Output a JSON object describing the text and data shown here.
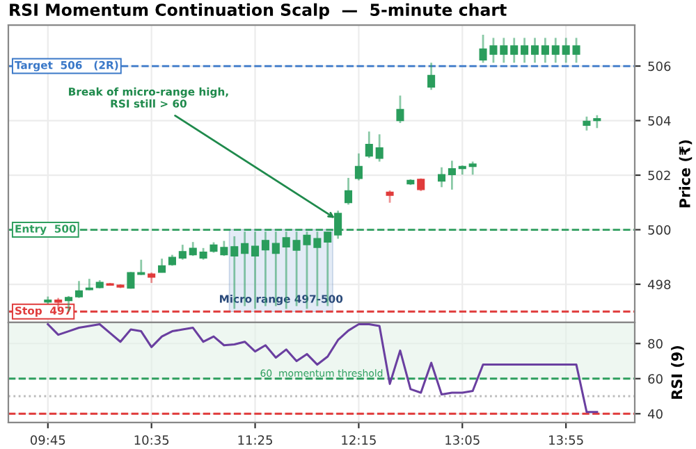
{
  "chart_data": [
    {
      "type": "candlestick",
      "title": "RSI Momentum Continuation Scalp  —  5-minute chart",
      "ylabel": "Price (₹)",
      "x": [
        9.75,
        9.8333,
        9.9167,
        10.0,
        10.0833,
        10.1667,
        10.25,
        10.3333,
        10.4167,
        10.5,
        10.5833,
        10.6667,
        10.75,
        10.8333,
        10.9167,
        11.0,
        11.0833,
        11.1667,
        11.25,
        11.3333,
        11.4167,
        11.5,
        11.5833,
        11.6667,
        11.75,
        11.8333,
        11.9167,
        12.0,
        12.0833,
        12.1667,
        12.25,
        12.3333,
        12.4167,
        12.5,
        12.5833,
        12.6667,
        12.75,
        12.8333,
        12.9167,
        13.0,
        13.0833,
        13.1667,
        13.25,
        13.3333,
        13.4167,
        13.5,
        13.5833,
        13.6667,
        13.75,
        13.8333,
        13.9167,
        14.0,
        14.0833,
        14.1667
      ],
      "ohlc": [
        [
          497.35,
          497.55,
          497.28,
          497.42
        ],
        [
          497.42,
          497.5,
          497.1,
          497.34
        ],
        [
          497.4,
          497.57,
          497.0,
          497.52
        ],
        [
          497.54,
          498.12,
          497.5,
          497.76
        ],
        [
          497.8,
          498.2,
          497.78,
          497.86
        ],
        [
          497.88,
          498.15,
          497.85,
          498.07
        ],
        [
          498.02,
          498.05,
          497.95,
          497.97
        ],
        [
          497.97,
          498.0,
          497.86,
          497.9
        ],
        [
          497.86,
          498.45,
          497.84,
          498.43
        ],
        [
          498.36,
          498.9,
          498.34,
          498.43
        ],
        [
          498.38,
          498.43,
          498.05,
          498.26
        ],
        [
          498.44,
          498.94,
          498.43,
          498.68
        ],
        [
          498.72,
          499.08,
          498.68,
          498.99
        ],
        [
          498.96,
          499.45,
          498.9,
          499.2
        ],
        [
          499.08,
          499.55,
          499.04,
          499.32
        ],
        [
          498.96,
          499.33,
          498.9,
          499.18
        ],
        [
          499.21,
          499.54,
          499.16,
          499.44
        ],
        [
          499.08,
          499.59,
          499.04,
          499.35
        ],
        [
          499.04,
          499.76,
          497.1,
          499.38
        ],
        [
          499.13,
          499.93,
          497.2,
          499.49
        ],
        [
          499.04,
          499.93,
          497.1,
          499.4
        ],
        [
          499.26,
          499.93,
          497.2,
          499.61
        ],
        [
          499.13,
          499.93,
          497.2,
          499.5
        ],
        [
          499.37,
          499.93,
          497.1,
          499.71
        ],
        [
          499.25,
          499.93,
          497.2,
          499.61
        ],
        [
          499.45,
          499.93,
          497.1,
          499.8
        ],
        [
          499.35,
          499.93,
          497.2,
          499.68
        ],
        [
          499.55,
          499.93,
          497.2,
          499.91
        ],
        [
          499.81,
          500.7,
          499.67,
          500.6
        ],
        [
          500.99,
          501.9,
          500.92,
          501.43
        ],
        [
          501.88,
          502.8,
          501.81,
          502.32
        ],
        [
          502.7,
          503.6,
          502.63,
          503.13
        ],
        [
          502.62,
          503.5,
          502.5,
          503.0
        ],
        [
          501.38,
          501.44,
          500.99,
          501.26
        ],
        [
          504.0,
          504.92,
          503.91,
          504.41
        ],
        [
          501.68,
          501.85,
          501.64,
          501.81
        ],
        [
          501.85,
          501.88,
          501.42,
          501.47
        ],
        [
          505.23,
          506.12,
          505.13,
          505.66
        ],
        [
          501.78,
          502.29,
          501.56,
          502.02
        ],
        [
          502.02,
          502.53,
          501.47,
          502.24
        ],
        [
          502.24,
          502.36,
          502.02,
          502.32
        ],
        [
          502.32,
          502.5,
          502.02,
          502.41
        ],
        [
          506.22,
          507.15,
          506.12,
          506.63
        ],
        [
          506.43,
          507.03,
          506.12,
          506.74
        ],
        [
          506.43,
          507.03,
          506.12,
          506.74
        ],
        [
          506.43,
          507.03,
          506.12,
          506.74
        ],
        [
          506.43,
          507.03,
          506.12,
          506.74
        ],
        [
          506.43,
          507.03,
          506.12,
          506.74
        ],
        [
          506.43,
          507.03,
          506.12,
          506.74
        ],
        [
          506.43,
          507.03,
          506.12,
          506.74
        ],
        [
          506.43,
          507.03,
          506.12,
          506.74
        ],
        [
          506.43,
          507.03,
          506.12,
          506.74
        ],
        [
          503.83,
          504.15,
          503.64,
          503.98
        ],
        [
          504.0,
          504.2,
          503.73,
          504.07
        ]
      ],
      "colors": [
        "#2a9d5c",
        "#e03b3b",
        "#2a9d5c",
        "#2a9d5c",
        "#2a9d5c",
        "#2a9d5c",
        "#e03b3b",
        "#e03b3b",
        "#2a9d5c",
        "#2a9d5c",
        "#e03b3b",
        "#2a9d5c",
        "#2a9d5c",
        "#2a9d5c",
        "#2a9d5c",
        "#2a9d5c",
        "#2a9d5c",
        "#2a9d5c",
        "#2a9d5c",
        "#2a9d5c",
        "#2a9d5c",
        "#2a9d5c",
        "#2a9d5c",
        "#2a9d5c",
        "#2a9d5c",
        "#2a9d5c",
        "#2a9d5c",
        "#2a9d5c",
        "#2a9d5c",
        "#2a9d5c",
        "#2a9d5c",
        "#2a9d5c",
        "#2a9d5c",
        "#e03b3b",
        "#2a9d5c",
        "#2a9d5c",
        "#e03b3b",
        "#2a9d5c",
        "#2a9d5c",
        "#2a9d5c",
        "#2a9d5c",
        "#2a9d5c",
        "#2a9d5c",
        "#2a9d5c",
        "#2a9d5c",
        "#2a9d5c",
        "#2a9d5c",
        "#2a9d5c",
        "#2a9d5c",
        "#2a9d5c",
        "#2a9d5c",
        "#2a9d5c",
        "#2a9d5c",
        "#2a9d5c"
      ],
      "xlim": [
        9.432,
        14.47
      ],
      "ylim": [
        496.6,
        507.5
      ],
      "yticks": [
        498,
        500,
        502,
        504,
        506
      ],
      "xticks": [
        {
          "value": 9.75,
          "label": null
        },
        {
          "value": 10.5833,
          "label": null
        },
        {
          "value": 11.4167,
          "label": null
        },
        {
          "value": 12.25,
          "label": null
        },
        {
          "value": 13.0833,
          "label": null
        },
        {
          "value": 13.9167,
          "label": null
        }
      ],
      "tick_labels": "y",
      "grid": true,
      "ref_lines": [
        {
          "axis": "y",
          "value": 506,
          "label": "Target  506   (2R)",
          "color": "#3a78c8",
          "line_style": "dashed"
        },
        {
          "axis": "y",
          "value": 500,
          "label": "Entry  500",
          "color": "#2e9e5e",
          "line_style": "dashed"
        },
        {
          "axis": "y",
          "value": 497,
          "label": "Stop  497",
          "color": "#e03b3b",
          "line_style": "dashed"
        }
      ],
      "bands": [
        {
          "axis": "x",
          "from": 11.21,
          "to": 12.04,
          "label": "Micro range 497-500",
          "color": "#c9d9ee"
        }
      ],
      "annotations": [
        {
          "text": "Break of micro-range high,\nRSI still > 60",
          "x": 12.0833,
          "y": 500.35
        }
      ]
    },
    {
      "type": "line",
      "ylabel": "RSI (9)",
      "x": [
        9.75,
        9.8333,
        9.9167,
        10.0,
        10.0833,
        10.1667,
        10.25,
        10.3333,
        10.4167,
        10.5,
        10.5833,
        10.6667,
        10.75,
        10.8333,
        10.9167,
        11.0,
        11.0833,
        11.1667,
        11.25,
        11.3333,
        11.4167,
        11.5,
        11.5833,
        11.6667,
        11.75,
        11.8333,
        11.9167,
        12.0,
        12.0833,
        12.1667,
        12.25,
        12.3333,
        12.4167,
        12.5,
        12.5833,
        12.6667,
        12.75,
        12.8333,
        12.9167,
        13.0,
        13.0833,
        13.1667,
        13.25,
        13.3333,
        13.4167,
        13.5,
        13.5833,
        13.6667,
        13.75,
        13.8333,
        13.9167,
        14.0,
        14.0833,
        14.1667
      ],
      "series": [
        {
          "color": "#6a3fa0",
          "values": [
            91,
            85,
            87,
            89,
            90,
            91,
            86,
            81,
            88,
            87,
            78,
            84,
            87,
            88,
            89,
            81,
            84,
            79,
            79.5,
            81,
            75.5,
            79,
            72,
            76.6,
            70,
            74,
            68,
            72.6,
            82,
            87.4,
            91,
            91,
            90,
            57,
            76,
            54,
            52,
            69,
            51,
            52,
            52,
            53,
            68,
            68,
            68,
            68,
            68,
            68,
            68,
            68,
            68,
            68,
            41,
            41
          ]
        }
      ],
      "xlim": [
        9.432,
        14.47
      ],
      "ylim": [
        35,
        92
      ],
      "yticks": [
        40,
        60,
        80
      ],
      "xticks": [
        {
          "value": 9.75,
          "label": "09:45"
        },
        {
          "value": 10.5833,
          "label": "10:35"
        },
        {
          "value": 11.4167,
          "label": "11:25"
        },
        {
          "value": 12.25,
          "label": "12:15"
        },
        {
          "value": 13.0833,
          "label": "13:05"
        },
        {
          "value": 13.9167,
          "label": "13:55"
        }
      ],
      "grid": true,
      "marker": "none",
      "line_style": "solid",
      "ref_lines": [
        {
          "axis": "y",
          "value": 60,
          "label": "60  momentum threshold",
          "color": "#2e9e5e",
          "line_style": "dashed"
        },
        {
          "axis": "y",
          "value": 50,
          "label": null,
          "color": "#bbbbbb",
          "line_style": "dotted"
        },
        {
          "axis": "y",
          "value": 40,
          "label": null,
          "color": "#e03b3b",
          "line_style": "dashed"
        }
      ],
      "bands": [
        {
          "axis": "y",
          "from": 60,
          "to": 92,
          "label": null,
          "color": "#e3f1e7"
        }
      ]
    }
  ]
}
